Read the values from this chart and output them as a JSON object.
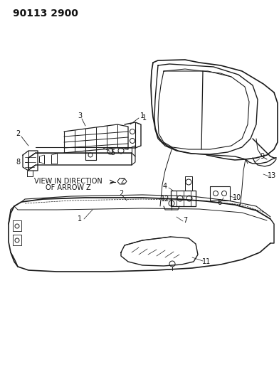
{
  "title": "90113 2900",
  "background_color": "#ffffff",
  "line_color": "#1a1a1a",
  "text_color": "#111111",
  "view_label_line1": "VIEW IN DIRECTION",
  "view_label_line2": "OF ARROW Z"
}
